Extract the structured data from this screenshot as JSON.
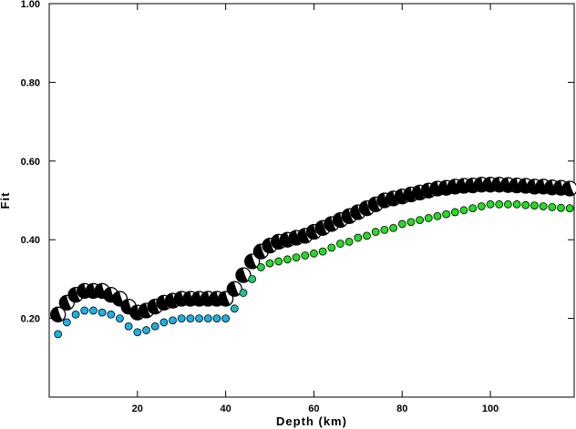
{
  "chart_data": {
    "type": "scatter",
    "xlabel": "Depth (km)",
    "ylabel": "Fit",
    "xlim": [
      0,
      119
    ],
    "ylim": [
      0.0,
      1.0
    ],
    "xticks": [
      20,
      40,
      60,
      80,
      100
    ],
    "xtick_labels": [
      "20",
      "40",
      "60",
      "80",
      "100"
    ],
    "yticks": [
      0.2,
      0.4,
      0.6,
      0.8,
      1.0
    ],
    "ytick_labels": [
      "0.20",
      "0.40",
      "0.60",
      "0.80",
      "1.00"
    ],
    "grid": false,
    "legend": "none",
    "colors": {
      "beachball_fill": "#000000",
      "beachball_light": "#ffffff",
      "dot_low": "#1ab2e6",
      "dot_high": "#22dd22",
      "dot_outline": "#000000"
    },
    "series": [
      {
        "marker": "beachball",
        "x": [
          2,
          4,
          6,
          8,
          10,
          12,
          14,
          16,
          18,
          20,
          22,
          24,
          26,
          28,
          30,
          32,
          34,
          36,
          38,
          40,
          42,
          44,
          46,
          48,
          50,
          52,
          54,
          56,
          58,
          60,
          62,
          64,
          66,
          68,
          70,
          72,
          74,
          76,
          78,
          80,
          82,
          84,
          86,
          88,
          90,
          92,
          94,
          96,
          98,
          100,
          102,
          104,
          106,
          108,
          110,
          112,
          114,
          116,
          118
        ],
        "y": [
          0.21,
          0.24,
          0.26,
          0.27,
          0.27,
          0.27,
          0.26,
          0.25,
          0.23,
          0.215,
          0.22,
          0.23,
          0.24,
          0.245,
          0.25,
          0.25,
          0.25,
          0.25,
          0.25,
          0.25,
          0.275,
          0.31,
          0.345,
          0.37,
          0.385,
          0.395,
          0.4,
          0.405,
          0.41,
          0.42,
          0.43,
          0.44,
          0.45,
          0.46,
          0.47,
          0.48,
          0.49,
          0.5,
          0.505,
          0.51,
          0.515,
          0.52,
          0.525,
          0.53,
          0.532,
          0.535,
          0.537,
          0.538,
          0.54,
          0.54,
          0.54,
          0.539,
          0.538,
          0.537,
          0.535,
          0.535,
          0.533,
          0.532,
          0.53
        ]
      },
      {
        "marker": "dot",
        "x": [
          2,
          4,
          6,
          8,
          10,
          12,
          14,
          16,
          18,
          20,
          22,
          24,
          26,
          28,
          30,
          32,
          34,
          36,
          38,
          40,
          42,
          44,
          46,
          48,
          50,
          52,
          54,
          56,
          58,
          60,
          62,
          64,
          66,
          68,
          70,
          72,
          74,
          76,
          78,
          80,
          82,
          84,
          86,
          88,
          90,
          92,
          94,
          96,
          98,
          100,
          102,
          104,
          106,
          108,
          110,
          112,
          114,
          116,
          118
        ],
        "y": [
          0.16,
          0.19,
          0.21,
          0.22,
          0.22,
          0.215,
          0.21,
          0.2,
          0.18,
          0.165,
          0.17,
          0.18,
          0.19,
          0.195,
          0.2,
          0.2,
          0.2,
          0.2,
          0.2,
          0.2,
          0.225,
          0.265,
          0.3,
          0.33,
          0.34,
          0.345,
          0.35,
          0.355,
          0.36,
          0.365,
          0.37,
          0.38,
          0.39,
          0.395,
          0.405,
          0.41,
          0.42,
          0.425,
          0.43,
          0.44,
          0.445,
          0.45,
          0.455,
          0.46,
          0.465,
          0.47,
          0.475,
          0.48,
          0.485,
          0.49,
          0.49,
          0.49,
          0.49,
          0.488,
          0.487,
          0.485,
          0.483,
          0.481,
          0.48
        ]
      }
    ]
  }
}
